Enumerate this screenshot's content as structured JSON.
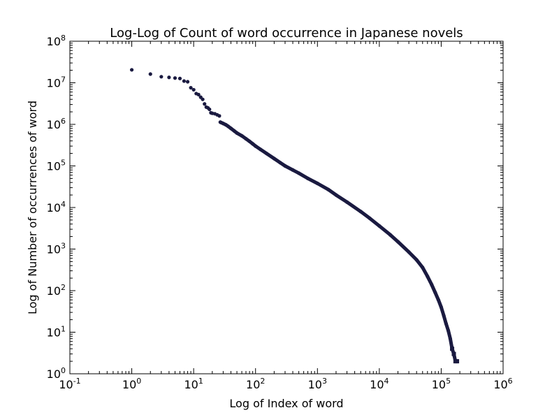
{
  "chart_data": {
    "type": "scatter",
    "title": "Log-Log of Count of word occurrence in Japanese novels",
    "xlabel": "Log of Index of word",
    "ylabel": "Log of Number of occurrences of word",
    "xscale": "log",
    "yscale": "log",
    "xlim": [
      0.1,
      1000000
    ],
    "ylim": [
      1,
      100000000
    ],
    "x_ticks": [
      {
        "value": 0.1,
        "base": "10",
        "exp": "-1"
      },
      {
        "value": 1,
        "base": "10",
        "exp": "0"
      },
      {
        "value": 10,
        "base": "10",
        "exp": "1"
      },
      {
        "value": 100,
        "base": "10",
        "exp": "2"
      },
      {
        "value": 1000,
        "base": "10",
        "exp": "3"
      },
      {
        "value": 10000,
        "base": "10",
        "exp": "4"
      },
      {
        "value": 100000,
        "base": "10",
        "exp": "5"
      },
      {
        "value": 1000000,
        "base": "10",
        "exp": "6"
      }
    ],
    "y_ticks": [
      {
        "value": 1,
        "base": "10",
        "exp": "0"
      },
      {
        "value": 10,
        "base": "10",
        "exp": "1"
      },
      {
        "value": 100,
        "base": "10",
        "exp": "2"
      },
      {
        "value": 1000,
        "base": "10",
        "exp": "3"
      },
      {
        "value": 10000,
        "base": "10",
        "exp": "4"
      },
      {
        "value": 100000,
        "base": "10",
        "exp": "5"
      },
      {
        "value": 1000000,
        "base": "10",
        "exp": "6"
      },
      {
        "value": 10000000,
        "base": "10",
        "exp": "7"
      },
      {
        "value": 100000000,
        "base": "10",
        "exp": "8"
      }
    ],
    "grid": false,
    "legend": "none",
    "marker_color": "#1a1a40",
    "series": [
      {
        "points": [
          [
            1,
            20500000
          ],
          [
            2,
            16200000
          ],
          [
            3,
            14000000
          ],
          [
            4,
            13500000
          ],
          [
            5,
            13000000
          ],
          [
            6,
            12700000
          ],
          [
            7,
            11000000
          ],
          [
            8,
            10600000
          ],
          [
            9,
            7600000
          ],
          [
            10,
            6800000
          ],
          [
            11,
            5500000
          ],
          [
            12,
            5200000
          ],
          [
            13,
            4500000
          ],
          [
            14,
            4000000
          ],
          [
            15,
            3100000
          ],
          [
            16,
            2600000
          ],
          [
            17,
            2500000
          ],
          [
            18,
            2300000
          ],
          [
            19,
            1900000
          ],
          [
            20,
            1850000
          ],
          [
            22,
            1800000
          ],
          [
            24,
            1700000
          ],
          [
            26,
            1600000
          ],
          [
            27,
            1130000
          ],
          [
            28,
            1100000
          ],
          [
            30,
            1050000
          ],
          [
            33,
            980000
          ],
          [
            36,
            900000
          ],
          [
            40,
            800000
          ],
          [
            45,
            700000
          ],
          [
            50,
            620000
          ],
          [
            60,
            530000
          ],
          [
            70,
            450000
          ],
          [
            80,
            390000
          ],
          [
            90,
            340000
          ],
          [
            100,
            300000
          ],
          [
            120,
            250000
          ],
          [
            150,
            200000
          ],
          [
            200,
            150000
          ],
          [
            250,
            120000
          ],
          [
            300,
            100000
          ],
          [
            400,
            80000
          ],
          [
            500,
            67000
          ],
          [
            700,
            50000
          ],
          [
            1000,
            38000
          ],
          [
            1500,
            27000
          ],
          [
            2000,
            20000
          ],
          [
            3000,
            13500
          ],
          [
            5000,
            8000
          ],
          [
            7000,
            5500
          ],
          [
            10000,
            3600
          ],
          [
            15000,
            2200
          ],
          [
            20000,
            1500
          ],
          [
            30000,
            850
          ],
          [
            40000,
            550
          ],
          [
            50000,
            360
          ],
          [
            60000,
            220
          ],
          [
            70000,
            140
          ],
          [
            80000,
            90
          ],
          [
            90000,
            60
          ],
          [
            100000,
            40
          ],
          [
            110000,
            25
          ],
          [
            120000,
            16
          ],
          [
            130000,
            11
          ],
          [
            140000,
            7
          ],
          [
            150000,
            4
          ],
          [
            160000,
            3
          ],
          [
            170000,
            2
          ],
          [
            180000,
            2
          ]
        ]
      }
    ]
  }
}
